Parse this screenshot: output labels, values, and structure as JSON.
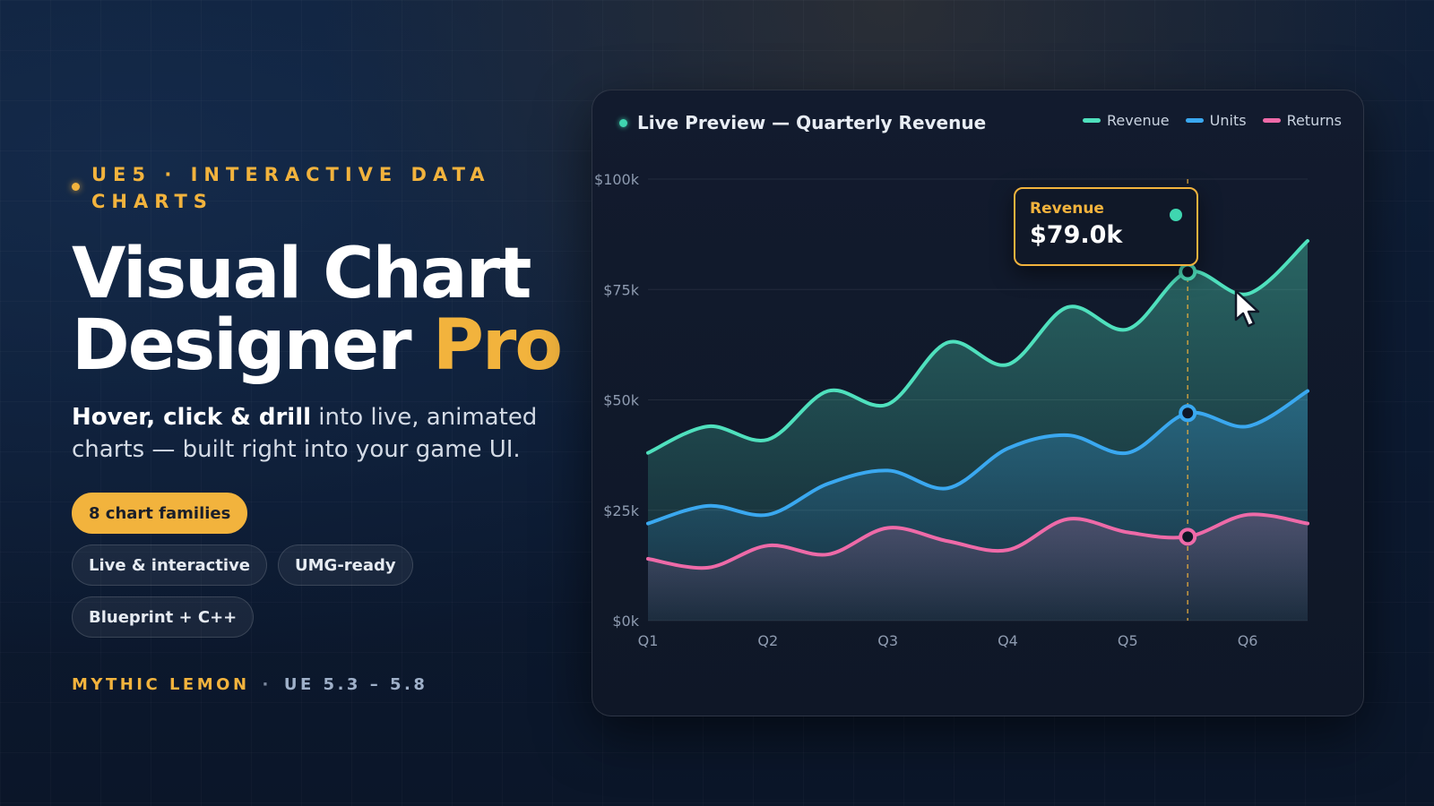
{
  "hero": {
    "eyebrow": "UE5 · INTERACTIVE DATA CHARTS",
    "title_line1": "Visual Chart",
    "title_line2_main": "Designer ",
    "title_line2_accent": "Pro",
    "subtitle_bold": "Hover, click & drill",
    "subtitle_rest": " into live, animated charts — built right into your game UI.",
    "chips": [
      "8 chart families",
      "Live & interactive",
      "UMG-ready",
      "Blueprint + C++"
    ],
    "brand": "MYTHIC LEMON",
    "separator": "·",
    "version": "UE 5.3 – 5.8"
  },
  "colors": {
    "accent": "#f2b33d",
    "revenue": "#4fe0bd",
    "units": "#3aa8f0",
    "returns": "#ee6aa8"
  },
  "panel": {
    "title": "Live Preview — Quarterly Revenue",
    "tooltip_label": "Revenue",
    "tooltip_value": "$79.0k"
  },
  "chart_data": {
    "type": "area",
    "title": "Live Preview — Quarterly Revenue",
    "xlabel": "",
    "ylabel": "",
    "categories": [
      "Q1",
      "Q2",
      "Q3",
      "Q4",
      "Q5",
      "Q6"
    ],
    "x": [
      1,
      1.5,
      2,
      2.5,
      3,
      3.5,
      4,
      4.5,
      5,
      5.5,
      6,
      6.5
    ],
    "xlim": [
      1,
      6.5
    ],
    "ylim": [
      0,
      100
    ],
    "y_ticks": [
      0,
      25,
      50,
      75,
      100
    ],
    "y_tick_labels": [
      "$0k",
      "$25k",
      "$50k",
      "$75k",
      "$100k"
    ],
    "grid": true,
    "legend_position": "top-right",
    "series": [
      {
        "name": "Revenue",
        "color": "#4fe0bd",
        "values": [
          38,
          44,
          41,
          52,
          49,
          63,
          58,
          71,
          66,
          79,
          74,
          86
        ]
      },
      {
        "name": "Units",
        "color": "#3aa8f0",
        "values": [
          22,
          26,
          24,
          31,
          34,
          30,
          39,
          42,
          38,
          47,
          44,
          52
        ]
      },
      {
        "name": "Returns",
        "color": "#ee6aa8",
        "values": [
          14,
          12,
          17,
          15,
          21,
          18,
          16,
          23,
          20,
          19,
          24,
          22
        ]
      }
    ],
    "highlight_x": 5.5
  }
}
